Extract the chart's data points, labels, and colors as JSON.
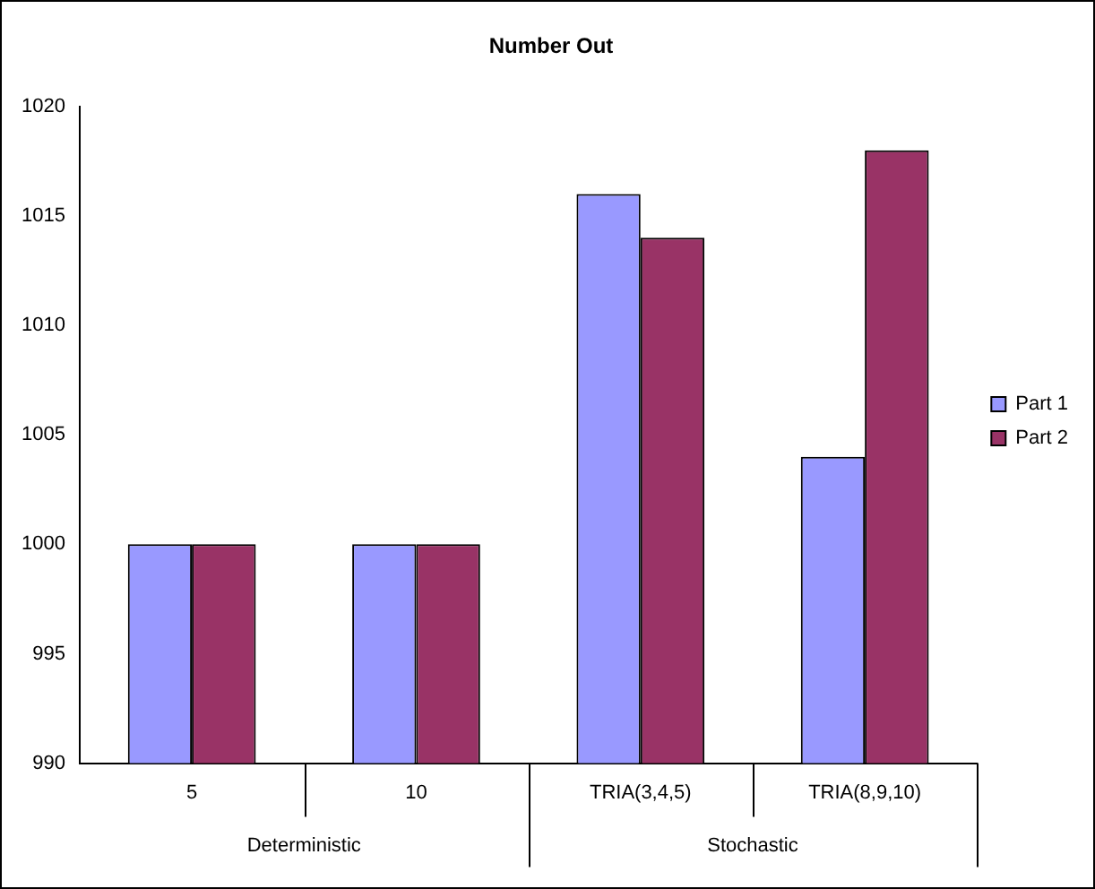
{
  "chart_data": {
    "type": "bar",
    "title": "Number Out",
    "categories": [
      "5",
      "10",
      "TRIA(3,4,5)",
      "TRIA(8,9,10)"
    ],
    "annotations": [
      "Deterministic",
      "Stochastic"
    ],
    "series": [
      {
        "name": "Part 1",
        "color": "#9999ff",
        "values": [
          1000,
          1000,
          1016,
          1004
        ]
      },
      {
        "name": "Part 2",
        "color": "#993366",
        "values": [
          1000,
          1000,
          1014,
          1018
        ]
      }
    ],
    "ylim": [
      990,
      1020
    ],
    "yticks": [
      990,
      995,
      1000,
      1005,
      1010,
      1015,
      1020
    ],
    "grid": false,
    "legend": "right"
  }
}
